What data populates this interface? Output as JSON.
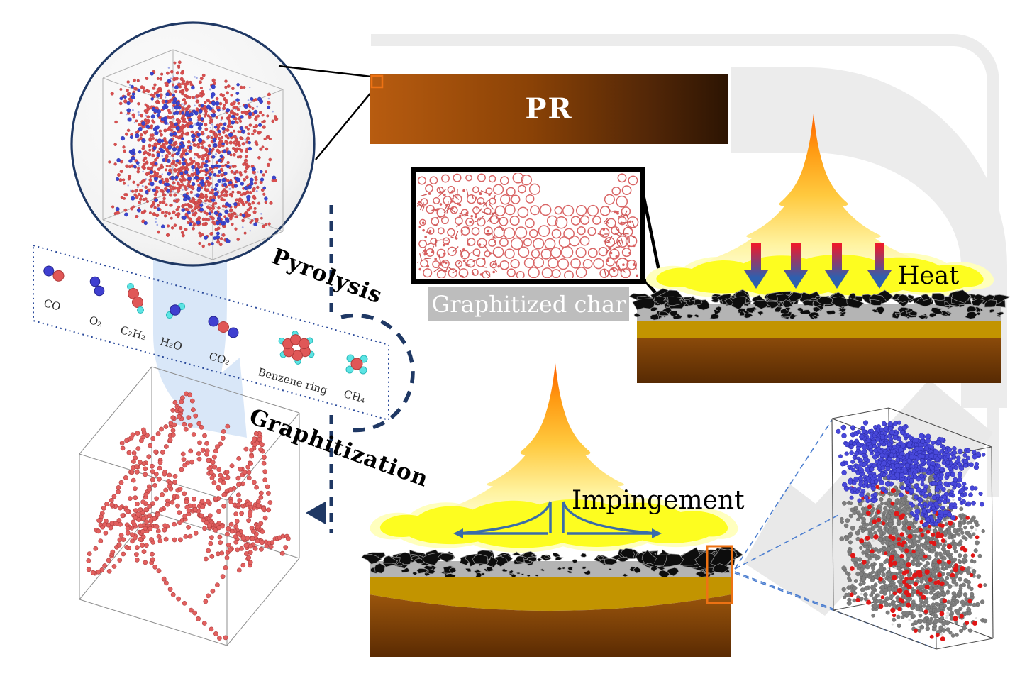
{
  "figure": {
    "labels": {
      "pr": "PR",
      "pyrolysis": "Pyrolysis",
      "graphitization": "Graphitization",
      "graphitized_char": "Graphitized char",
      "heat": "Heat",
      "impingement": "Impingement"
    },
    "molecules": [
      {
        "name": "CO",
        "label": "CO"
      },
      {
        "name": "O2",
        "label": "O₂"
      },
      {
        "name": "C2H2",
        "label": "C₂H₂"
      },
      {
        "name": "H2O",
        "label": "H₂O"
      },
      {
        "name": "CO2",
        "label": "CO₂"
      },
      {
        "name": "benzene",
        "label": "Benzene ring"
      },
      {
        "name": "CH4",
        "label": "CH₄"
      }
    ],
    "colors": {
      "navy": "#1f3864",
      "carbon_red": "#e05757",
      "oxygen_blue": "#3f3fd0",
      "hydrogen_cyan": "#5ce4e4",
      "sim_red": "#d94f4f",
      "sim_blue": "#3b46cf",
      "graphene_blue": "#4848da",
      "atom_gray": "#7e7e7e",
      "pr_brown_light": "#b85c10",
      "pr_brown_dark": "#2c1402",
      "flame_orange": "#ff5f00",
      "flame_yellow": "#fdfd20",
      "char_black": "#0d0d0d",
      "char_gray_strip": "#b4b4b4",
      "substrate_gold": "#c29400",
      "substrate_brown": "#7c3f05",
      "callout_orange": "#ed7214",
      "heat_arrow_red": "#ea1b2d",
      "heat_arrow_blue": "#2f5fae",
      "velocity_blue": "#3a6ca8",
      "bg_band_gray": "#ececec",
      "char_label_bg": "#bdbdbd",
      "flow_arrow_blue": "#cfe1f6",
      "mesh_red": "#d96666"
    }
  }
}
